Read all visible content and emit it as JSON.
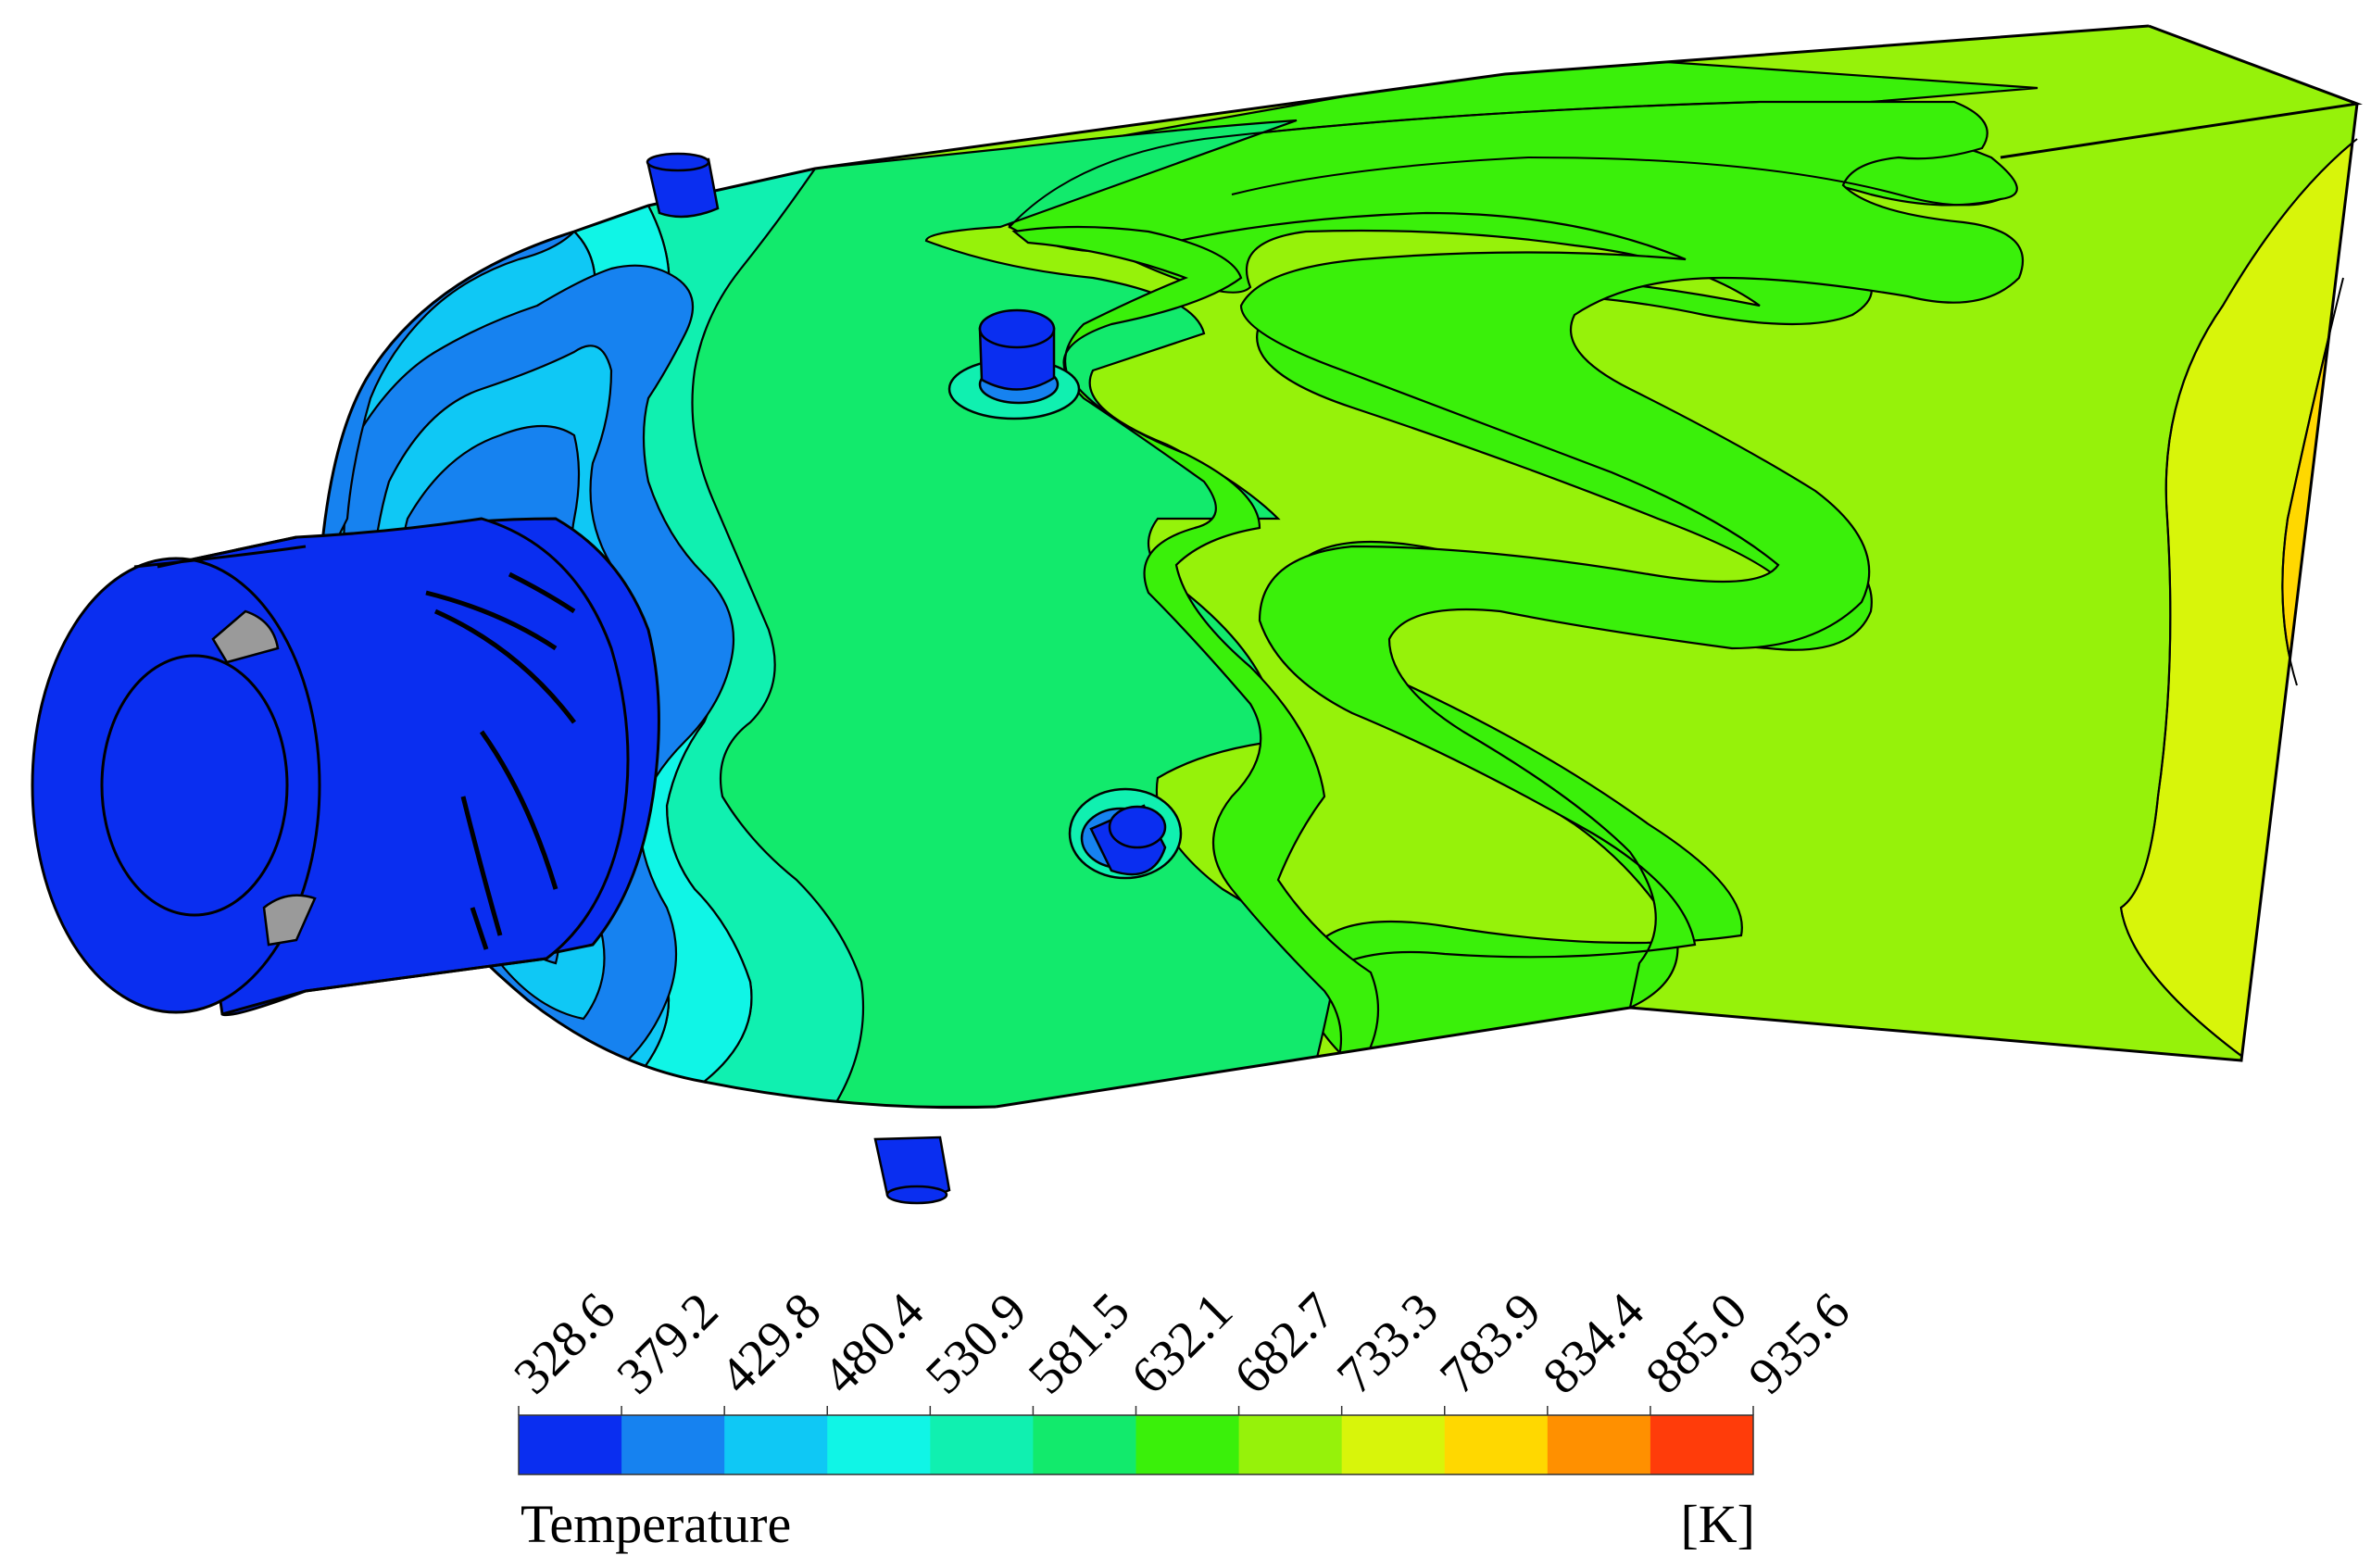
{
  "legend": {
    "title": "Temperature",
    "unit": "[K]",
    "ticks": [
      "328.6",
      "379.2",
      "429.8",
      "480.4",
      "530.9",
      "581.5",
      "632.1",
      "682.7",
      "733.3",
      "783.9",
      "834.4",
      "885.0",
      "935.6"
    ],
    "colors": [
      "#0a2ef0",
      "#1682f0",
      "#0fc8f5",
      "#10f5e6",
      "#10f0b0",
      "#12ea6c",
      "#3af00a",
      "#96f20a",
      "#d8f50a",
      "#ffd800",
      "#ff9000",
      "#ff3c0a"
    ]
  },
  "field_colors": {
    "level_1": "#0a2ef0",
    "level_2": "#1682f0",
    "level_3": "#0fc8f5",
    "level_4": "#10f5e6",
    "level_5": "#10f0b0",
    "level_6": "#12ea6c",
    "level_7": "#3af00a",
    "level_8": "#96f20a",
    "level_9": "#d8f50a",
    "level_10": "#ffd800",
    "inner_dark": "#9a9a9a"
  }
}
